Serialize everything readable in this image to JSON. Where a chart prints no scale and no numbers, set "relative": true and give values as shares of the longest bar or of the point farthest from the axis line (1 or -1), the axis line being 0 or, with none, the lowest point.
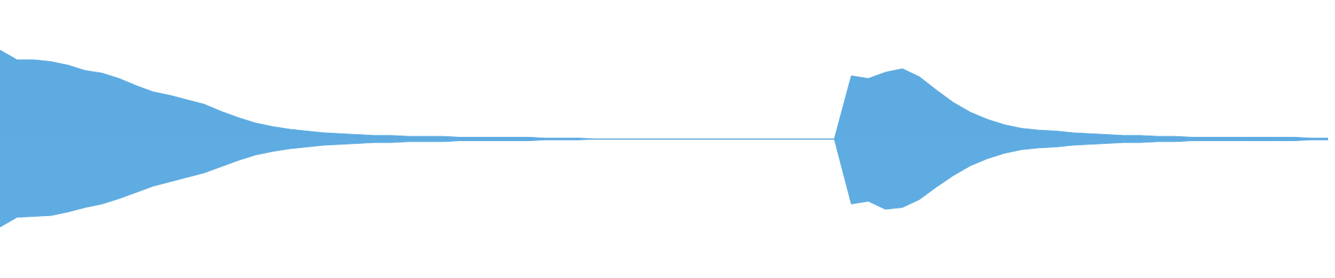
{
  "chart_data": {
    "type": "area",
    "relative": true,
    "categories": [
      null,
      null,
      null,
      null,
      null,
      null,
      null,
      null,
      null,
      null,
      null,
      null,
      null,
      null,
      null,
      null,
      null,
      null,
      null,
      null,
      null,
      null,
      null,
      null,
      null,
      null,
      null,
      null,
      null,
      null,
      null,
      null,
      null,
      null,
      null,
      null,
      null,
      null,
      null,
      null,
      null,
      null,
      null,
      null,
      null,
      null,
      null,
      null,
      null,
      null,
      null,
      null,
      null,
      null,
      null,
      null,
      null,
      null,
      null,
      null,
      null,
      null,
      null,
      null,
      null,
      null,
      null,
      null,
      null,
      null,
      null,
      null,
      null,
      null,
      null,
      null,
      null,
      null,
      null
    ],
    "series": [
      {
        "color": "#5dabe1",
        "values": [
          1.0,
          0.89,
          0.89,
          0.87,
          0.83,
          0.77,
          0.74,
          0.68,
          0.6,
          0.53,
          0.49,
          0.44,
          0.39,
          0.31,
          0.24,
          0.18,
          0.14,
          0.11,
          0.09,
          0.07,
          0.06,
          0.05,
          0.04,
          0.04,
          0.03,
          0.03,
          0.03,
          0.02,
          0.02,
          0.02,
          0.02,
          0.02,
          0.01,
          0.01,
          0.01,
          0.0,
          0.0,
          0.0,
          0.0,
          0.0,
          0.0,
          0.0,
          0.0,
          0.0,
          0.0,
          0.0,
          0.0,
          0.0,
          0.0,
          0.0,
          0.71,
          0.68,
          0.75,
          0.79,
          0.7,
          0.55,
          0.41,
          0.3,
          0.22,
          0.16,
          0.12,
          0.1,
          0.09,
          0.07,
          0.06,
          0.05,
          0.04,
          0.04,
          0.03,
          0.03,
          0.02,
          0.02,
          0.02,
          0.02,
          0.02,
          0.02,
          0.02,
          0.01,
          0.01
        ]
      },
      {
        "color": "#5eace1",
        "values": [
          -0.99,
          -0.88,
          -0.87,
          -0.86,
          -0.82,
          -0.77,
          -0.73,
          -0.67,
          -0.6,
          -0.53,
          -0.48,
          -0.43,
          -0.38,
          -0.31,
          -0.24,
          -0.18,
          -0.14,
          -0.11,
          -0.09,
          -0.07,
          -0.06,
          -0.05,
          -0.04,
          -0.04,
          -0.03,
          -0.03,
          -0.03,
          -0.02,
          -0.02,
          -0.02,
          -0.02,
          -0.02,
          -0.01,
          -0.01,
          -0.01,
          0.0,
          0.0,
          0.0,
          0.0,
          0.0,
          0.0,
          0.0,
          0.0,
          0.0,
          0.0,
          0.0,
          0.0,
          0.0,
          0.0,
          0.0,
          -0.73,
          -0.7,
          -0.79,
          -0.77,
          -0.68,
          -0.54,
          -0.41,
          -0.3,
          -0.22,
          -0.16,
          -0.12,
          -0.1,
          -0.09,
          -0.07,
          -0.06,
          -0.05,
          -0.04,
          -0.04,
          -0.03,
          -0.03,
          -0.02,
          -0.02,
          -0.02,
          -0.02,
          -0.02,
          -0.02,
          -0.02,
          -0.01,
          -0.01
        ]
      }
    ]
  }
}
